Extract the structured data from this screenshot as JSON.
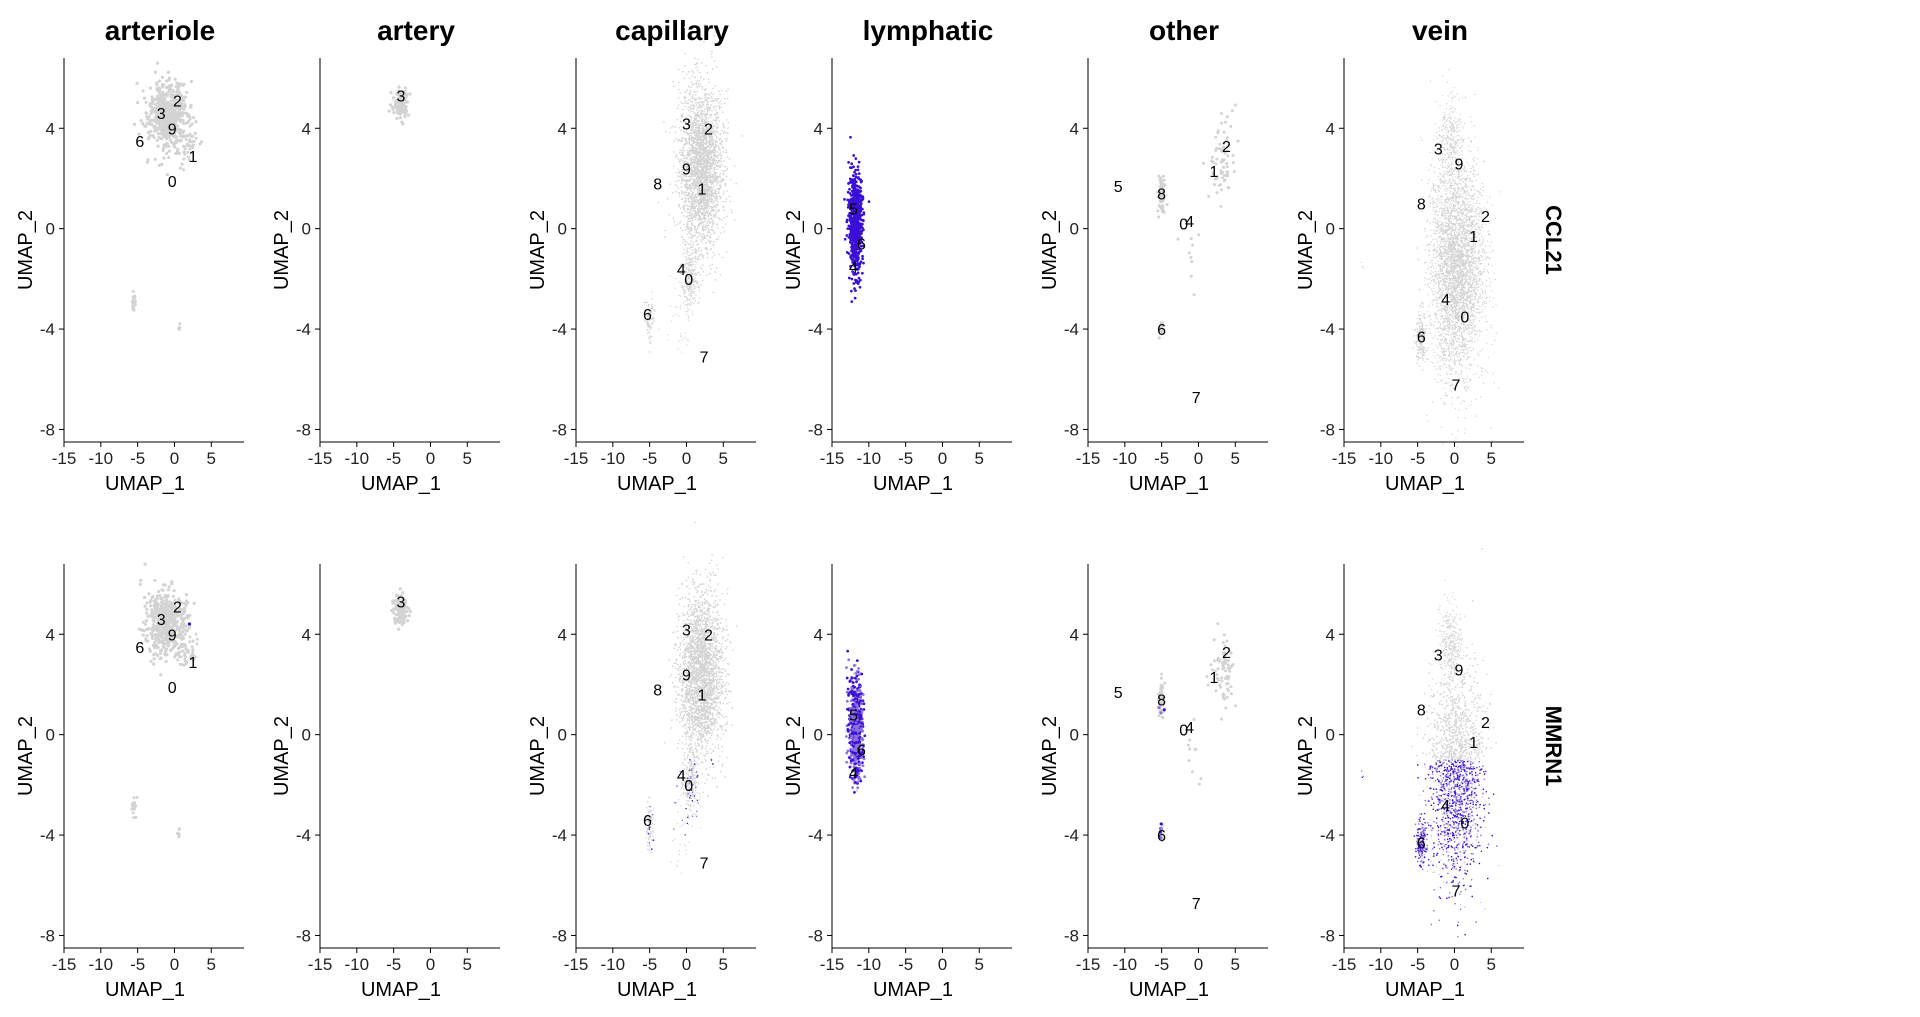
{
  "chart_data": {
    "type": "scatter",
    "description_free": true,
    "panel_columns": [
      "arteriole",
      "artery",
      "capillary",
      "lymphatic",
      "other",
      "vein"
    ],
    "panel_rows": [
      "CCL21",
      "MMRN1"
    ],
    "xlabel": "UMAP_1",
    "ylabel": "UMAP_2",
    "xlim": [
      -15,
      7
    ],
    "ylim": [
      -8.5,
      6.8
    ],
    "xticks": [
      -15,
      -10,
      -5,
      0,
      5
    ],
    "yticks": [
      -8,
      -4,
      0,
      4
    ],
    "colors": {
      "low": "#d3d3d3",
      "high": "#3a0fd6",
      "mid": "#8c6fe0"
    },
    "clusters": {
      "arteriole": [
        {
          "label": "3",
          "x": -1.8,
          "y": 4.6
        },
        {
          "label": "2",
          "x": 0.4,
          "y": 5.1
        },
        {
          "label": "6",
          "x": -4.7,
          "y": 3.5
        },
        {
          "label": "9",
          "x": -0.3,
          "y": 4.0
        },
        {
          "label": "1",
          "x": 2.5,
          "y": 2.9
        },
        {
          "label": "0",
          "x": -0.3,
          "y": 1.9
        }
      ],
      "artery": [
        {
          "label": "3",
          "x": -4.0,
          "y": 5.3
        }
      ],
      "capillary": [
        {
          "label": "3",
          "x": 0.0,
          "y": 4.2
        },
        {
          "label": "2",
          "x": 3.0,
          "y": 4.0
        },
        {
          "label": "9",
          "x": 0.0,
          "y": 2.4
        },
        {
          "label": "8",
          "x": -3.9,
          "y": 1.8
        },
        {
          "label": "1",
          "x": 2.1,
          "y": 1.6
        },
        {
          "label": "4",
          "x": -0.7,
          "y": -1.6
        },
        {
          "label": "0",
          "x": 0.3,
          "y": -2.0
        },
        {
          "label": "6",
          "x": -5.3,
          "y": -3.4
        },
        {
          "label": "7",
          "x": 2.4,
          "y": -5.1
        }
      ],
      "lymphatic": [
        {
          "label": "5",
          "x": -12.1,
          "y": 0.8
        },
        {
          "label": "6",
          "x": -11.0,
          "y": -0.6
        },
        {
          "label": "4",
          "x": -12.1,
          "y": -1.5
        }
      ],
      "other": [
        {
          "label": "2",
          "x": 3.8,
          "y": 3.3
        },
        {
          "label": "1",
          "x": 2.1,
          "y": 2.3
        },
        {
          "label": "5",
          "x": -10.9,
          "y": 1.7
        },
        {
          "label": "8",
          "x": -5.0,
          "y": 1.4
        },
        {
          "label": "0",
          "x": -2.0,
          "y": 0.2
        },
        {
          "label": "4",
          "x": -1.2,
          "y": 0.3
        },
        {
          "label": "6",
          "x": -5.0,
          "y": -4.0
        },
        {
          "label": "7",
          "x": -0.3,
          "y": -6.7
        }
      ],
      "vein": [
        {
          "label": "3",
          "x": -2.2,
          "y": 3.2
        },
        {
          "label": "9",
          "x": 0.6,
          "y": 2.6
        },
        {
          "label": "8",
          "x": -4.5,
          "y": 1.0
        },
        {
          "label": "2",
          "x": 4.2,
          "y": 0.5
        },
        {
          "label": "1",
          "x": 2.6,
          "y": -0.3
        },
        {
          "label": "4",
          "x": -1.2,
          "y": -2.8
        },
        {
          "label": "0",
          "x": 1.4,
          "y": -3.5
        },
        {
          "label": "6",
          "x": -4.5,
          "y": -4.3
        },
        {
          "label": "7",
          "x": 0.2,
          "y": -6.2
        }
      ]
    },
    "cell_clouds": {
      "arteriole": [
        {
          "cx": -1.0,
          "cy": 4.5,
          "rx": 2.8,
          "ry": 1.3,
          "n": 520,
          "size": 3.2
        },
        {
          "cx": 1.8,
          "cy": 3.3,
          "rx": 1.6,
          "ry": 0.7,
          "n": 40,
          "size": 3.0
        },
        {
          "cx": -5.5,
          "cy": -3.0,
          "rx": 0.3,
          "ry": 0.5,
          "n": 20,
          "size": 3.0
        },
        {
          "cx": 0.6,
          "cy": -3.9,
          "rx": 0.2,
          "ry": 0.2,
          "n": 6,
          "size": 3.0
        }
      ],
      "artery": [
        {
          "cx": -4.1,
          "cy": 5.0,
          "rx": 1.0,
          "ry": 0.6,
          "n": 120,
          "size": 3.2
        }
      ],
      "capillary": [
        {
          "cx": 2.0,
          "cy": 2.4,
          "rx": 2.9,
          "ry": 3.2,
          "n": 2600,
          "size": 1.6
        },
        {
          "cx": 0.5,
          "cy": -1.9,
          "rx": 1.1,
          "ry": 1.2,
          "n": 260,
          "size": 1.4
        },
        {
          "cx": -5.0,
          "cy": -3.6,
          "rx": 0.6,
          "ry": 0.9,
          "n": 90,
          "size": 1.5
        },
        {
          "cx": -0.5,
          "cy": -3.5,
          "rx": 1.5,
          "ry": 2.0,
          "n": 40,
          "size": 1.3
        }
      ],
      "lymphatic": [
        {
          "cx": -11.8,
          "cy": 0.3,
          "rx": 0.9,
          "ry": 1.9,
          "n": 700,
          "size": 2.6
        }
      ],
      "other": [
        {
          "cx": 3.2,
          "cy": 2.6,
          "rx": 1.8,
          "ry": 1.6,
          "n": 70,
          "size": 3.0
        },
        {
          "cx": -5.0,
          "cy": 1.4,
          "rx": 0.5,
          "ry": 0.7,
          "n": 60,
          "size": 3.0
        },
        {
          "cx": -5.1,
          "cy": -3.9,
          "rx": 0.3,
          "ry": 0.5,
          "n": 15,
          "size": 3.0
        },
        {
          "cx": -1.0,
          "cy": -1.0,
          "rx": 1.2,
          "ry": 1.5,
          "n": 10,
          "size": 3.0
        }
      ],
      "vein": [
        {
          "cx": 0.3,
          "cy": -1.6,
          "rx": 3.6,
          "ry": 4.2,
          "n": 3400,
          "size": 1.4
        },
        {
          "cx": -0.5,
          "cy": 3.6,
          "rx": 1.6,
          "ry": 1.6,
          "n": 300,
          "size": 1.3
        },
        {
          "cx": -4.5,
          "cy": -4.3,
          "rx": 0.7,
          "ry": 1.0,
          "n": 180,
          "size": 1.5
        },
        {
          "cx": -12.5,
          "cy": -1.5,
          "rx": 0.2,
          "ry": 0.2,
          "n": 3,
          "size": 1.4
        }
      ]
    },
    "expression": {
      "CCL21": {
        "arteriole": {
          "cluster_frac": 0.0
        },
        "artery": {
          "cluster_frac": 0.0
        },
        "capillary": {
          "cluster_frac": 0.0
        },
        "lymphatic": {
          "cluster_frac": 1.0
        },
        "other": {
          "cluster_frac": 0.0
        },
        "vein": {
          "cluster_frac": 0.0
        }
      },
      "MMRN1": {
        "arteriole": {
          "cluster_frac": 0.002
        },
        "artery": {
          "cluster_frac": 0.01
        },
        "capillary": {
          "cluster_frac": 0.06
        },
        "lymphatic": {
          "cluster_frac": 0.9
        },
        "other": {
          "cluster_frac": 0.05
        },
        "vein": {
          "cluster_frac": 0.35
        }
      }
    }
  }
}
